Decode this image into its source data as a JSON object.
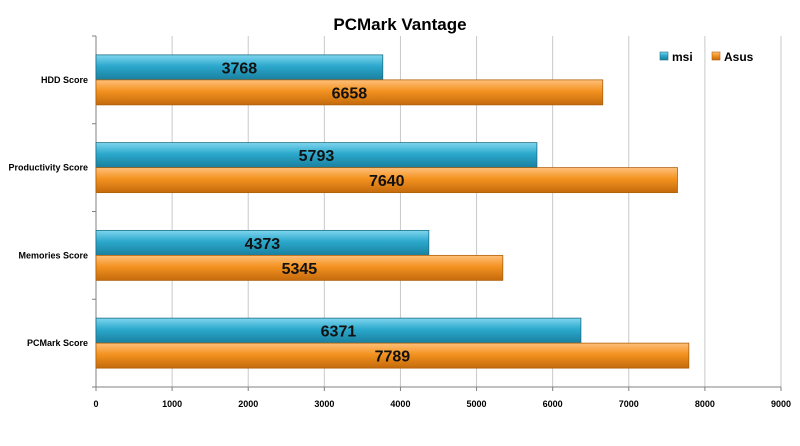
{
  "chart_data": {
    "type": "bar",
    "orientation": "horizontal",
    "title": "PCMark Vantage",
    "categories": [
      "HDD Score",
      "Productivity Score",
      "Memories Score",
      "PCMark Score"
    ],
    "series": [
      {
        "name": "msi",
        "color": "#2BA8CC",
        "values": [
          3768,
          5793,
          4373,
          6371
        ]
      },
      {
        "name": "Asus",
        "color": "#F39220",
        "values": [
          6658,
          7640,
          5345,
          7789
        ]
      }
    ],
    "xlim": [
      0,
      9000
    ],
    "xticks": [
      0,
      1000,
      2000,
      3000,
      4000,
      5000,
      6000,
      7000,
      8000,
      9000
    ],
    "grid": true,
    "legend": "top-right"
  }
}
